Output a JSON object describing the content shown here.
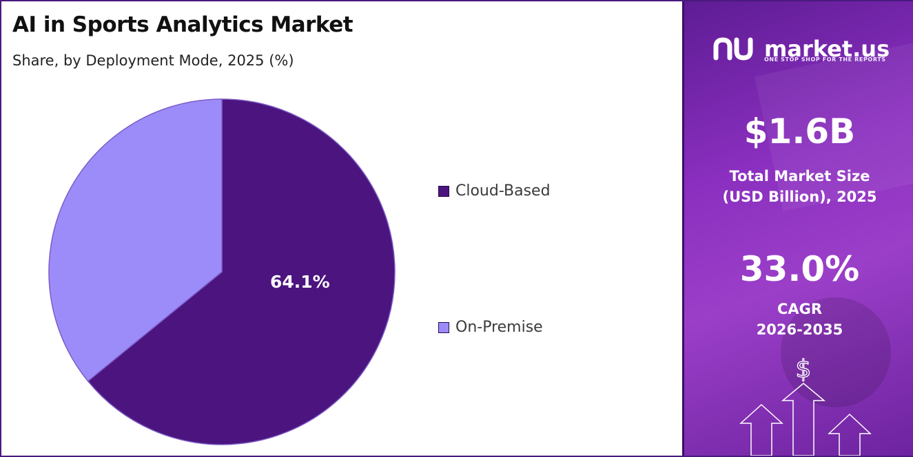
{
  "title": "AI in Sports Analytics Market",
  "subtitle": "Share, by Deployment Mode, 2025 (%)",
  "chart_data": {
    "type": "pie",
    "categories": [
      "Cloud-Based",
      "On-Premise"
    ],
    "values": [
      64.1,
      35.9
    ],
    "colors": [
      "#4b147f",
      "#9b8cf9"
    ],
    "data_labels": [
      "64.1%",
      ""
    ],
    "legend_placement": "right"
  },
  "legend": {
    "items": [
      {
        "label": "Cloud-Based",
        "color": "#4b147f"
      },
      {
        "label": "On-Premise",
        "color": "#9b8cf9"
      }
    ]
  },
  "sidebar": {
    "brand": "market.us",
    "tagline": "ONE STOP SHOP FOR THE REPORTS",
    "market_size_value": "$1.6B",
    "market_size_label_1": "Total Market Size",
    "market_size_label_2": "(USD Billion), 2025",
    "cagr_value": "33.0%",
    "cagr_label_1": "CAGR",
    "cagr_label_2": "2026-2035",
    "icon": "dollar-growth-arrows-icon"
  }
}
